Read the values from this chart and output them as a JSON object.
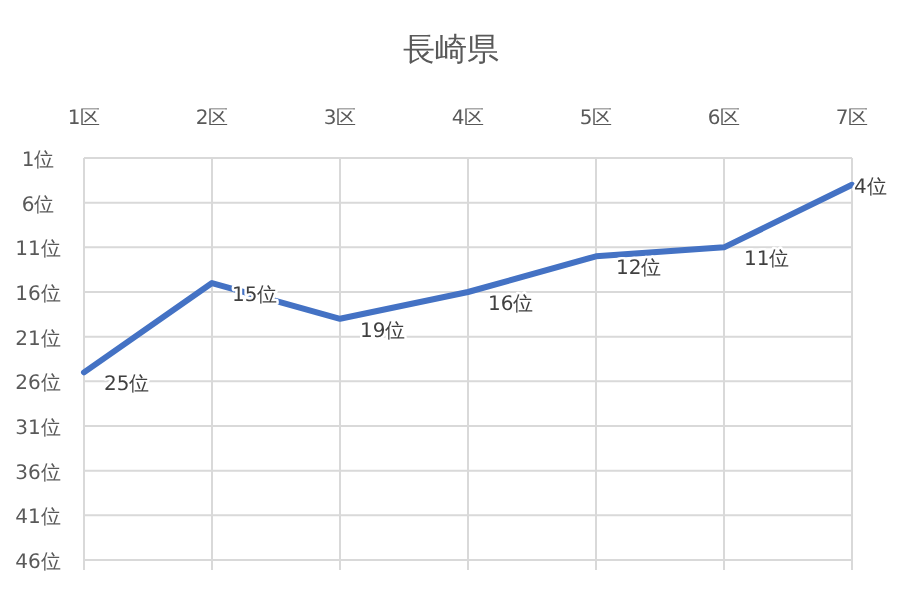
{
  "chart_data": {
    "type": "line",
    "title": "長崎県",
    "categories": [
      "1区",
      "2区",
      "3区",
      "4区",
      "5区",
      "6区",
      "7区"
    ],
    "values": [
      25,
      15,
      19,
      16,
      12,
      11,
      4
    ],
    "value_labels": [
      "25位",
      "15位",
      "19位",
      "16位",
      "12位",
      "11位",
      "4位"
    ],
    "color": "#4472c4",
    "ylim": [
      46,
      1
    ],
    "yticks": [
      {
        "value": 1,
        "label": "1位"
      },
      {
        "value": 6,
        "label": "6位"
      },
      {
        "value": 11,
        "label": "11位"
      },
      {
        "value": 16,
        "label": "16位"
      },
      {
        "value": 21,
        "label": "21位"
      },
      {
        "value": 26,
        "label": "26位"
      },
      {
        "value": 31,
        "label": "31位"
      },
      {
        "value": 36,
        "label": "36位"
      },
      {
        "value": 41,
        "label": "41位"
      },
      {
        "value": 46,
        "label": "46位"
      }
    ],
    "grid": true
  }
}
